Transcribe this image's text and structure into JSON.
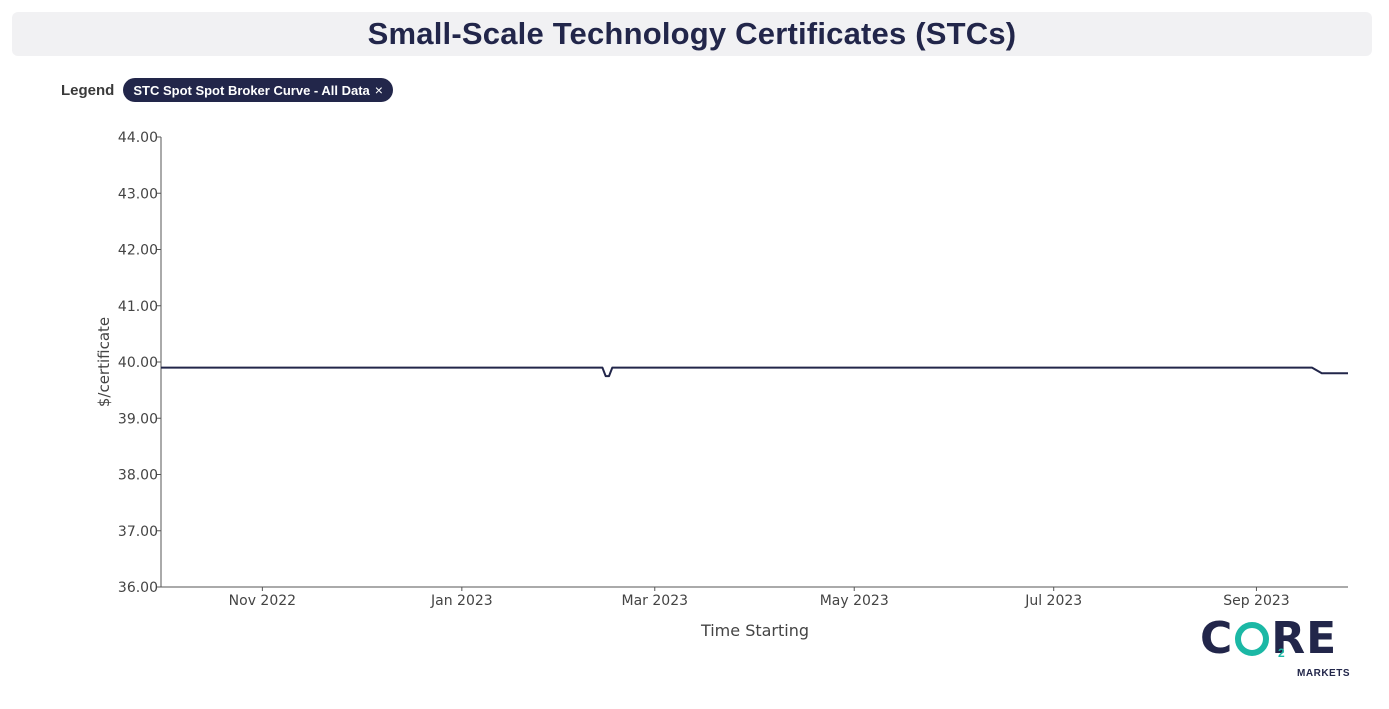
{
  "header": {
    "title": "Small-Scale Technology Certificates (STCs)"
  },
  "legend": {
    "label": "Legend",
    "chip_label": "STC Spot Spot Broker Curve - All Data",
    "chip_close": "×"
  },
  "logo": {
    "part1": "C",
    "part2": "RE",
    "subscript": "2",
    "tagline": "MARKETS",
    "colors": {
      "primary": "#22264a",
      "accent": "#1bb8a5"
    }
  },
  "chart_data": {
    "type": "line",
    "xlabel": "Time Starting",
    "ylabel": "$/certificate",
    "ylim": [
      36,
      44
    ],
    "yticks": [
      "36.00",
      "37.00",
      "38.00",
      "39.00",
      "40.00",
      "41.00",
      "42.00",
      "43.00",
      "44.00"
    ],
    "xlim": [
      "2022-10-01",
      "2023-09-29"
    ],
    "xticks": [
      {
        "date": "2022-11-01",
        "label": "Nov 2022"
      },
      {
        "date": "2023-01-01",
        "label": "Jan 2023"
      },
      {
        "date": "2023-03-01",
        "label": "Mar 2023"
      },
      {
        "date": "2023-05-01",
        "label": "May 2023"
      },
      {
        "date": "2023-07-01",
        "label": "Jul 2023"
      },
      {
        "date": "2023-09-01",
        "label": "Sep 2023"
      }
    ],
    "grid": false,
    "legend_position": "top-left",
    "series": [
      {
        "name": "STC Spot Spot Broker Curve - All Data",
        "color": "#22264a",
        "points": [
          {
            "x": "2022-10-01",
            "y": 39.9
          },
          {
            "x": "2023-02-13",
            "y": 39.9
          },
          {
            "x": "2023-02-14",
            "y": 39.75
          },
          {
            "x": "2023-02-15",
            "y": 39.75
          },
          {
            "x": "2023-02-16",
            "y": 39.9
          },
          {
            "x": "2023-09-18",
            "y": 39.9
          },
          {
            "x": "2023-09-21",
            "y": 39.8
          },
          {
            "x": "2023-09-29",
            "y": 39.8
          }
        ]
      }
    ]
  }
}
